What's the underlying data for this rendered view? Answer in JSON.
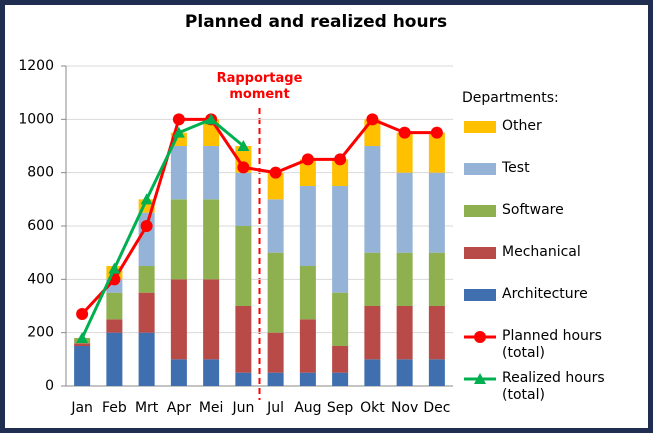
{
  "chart_data": {
    "type": "bar",
    "stacked": true,
    "title": "Planned and realized hours",
    "annotation": "Rapportage moment",
    "legend_title": "Departments:",
    "categories": [
      "Jan",
      "Feb",
      "Mrt",
      "Apr",
      "Mei",
      "Jun",
      "Jul",
      "Aug",
      "Sep",
      "Okt",
      "Nov",
      "Dec"
    ],
    "ylim": [
      0,
      1200
    ],
    "yticks": [
      0,
      200,
      400,
      600,
      800,
      1000,
      1200
    ],
    "grid": true,
    "series": [
      {
        "name": "Architecture",
        "color": "#3f6fae",
        "values": [
          150,
          200,
          200,
          100,
          100,
          50,
          50,
          50,
          50,
          100,
          100,
          100
        ]
      },
      {
        "name": "Mechanical",
        "color": "#b84a47",
        "values": [
          10,
          50,
          150,
          300,
          300,
          250,
          150,
          200,
          100,
          200,
          200,
          200
        ]
      },
      {
        "name": "Software",
        "color": "#8fb04e",
        "values": [
          20,
          100,
          100,
          300,
          300,
          300,
          300,
          200,
          200,
          200,
          200,
          200
        ]
      },
      {
        "name": "Test",
        "color": "#95b3d7",
        "values": [
          0,
          50,
          200,
          200,
          200,
          200,
          200,
          300,
          400,
          400,
          300,
          300
        ]
      },
      {
        "name": "Other",
        "color": "#ffc000",
        "values": [
          0,
          50,
          50,
          50,
          100,
          100,
          100,
          100,
          100,
          100,
          150,
          150
        ]
      },
      {
        "name": "Planned hours (total)",
        "type": "line",
        "color": "#ff0000",
        "marker": "circle",
        "values": [
          270,
          400,
          600,
          1000,
          1000,
          820,
          800,
          850,
          850,
          1000,
          950,
          950
        ]
      },
      {
        "name": "Realized hours (total)",
        "type": "line",
        "color": "#00b050",
        "marker": "triangle",
        "values": [
          180,
          440,
          700,
          950,
          1000,
          900,
          null,
          null,
          null,
          null,
          null,
          null
        ]
      }
    ]
  }
}
